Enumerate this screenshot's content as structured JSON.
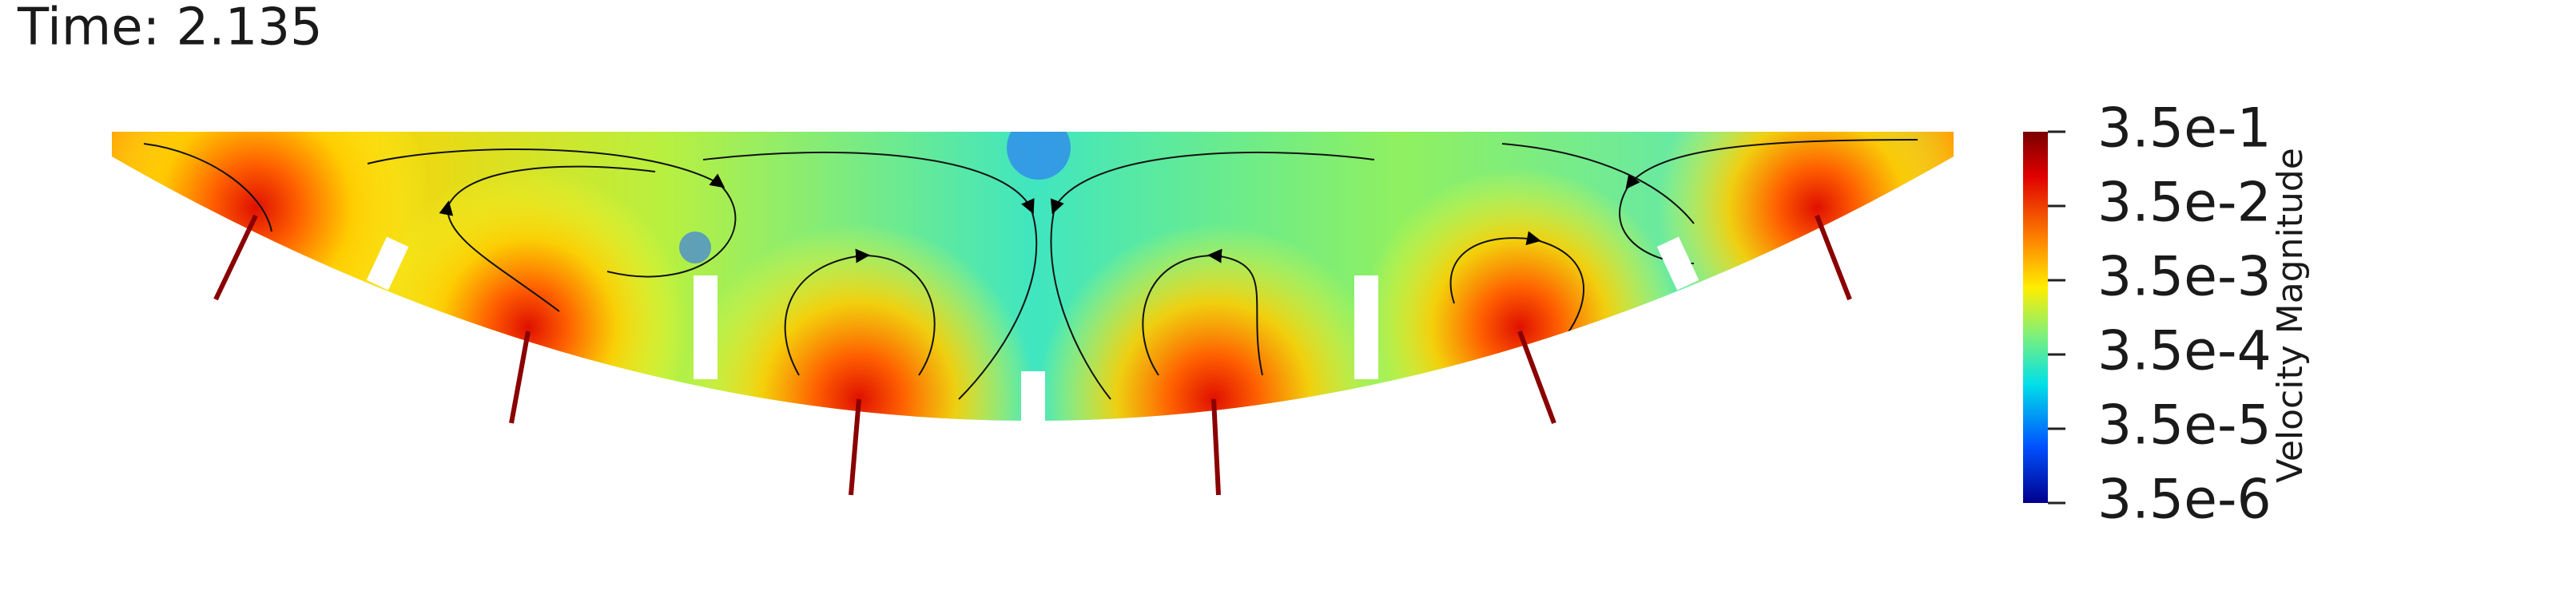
{
  "header": {
    "title": "Time: 2.135"
  },
  "colorbar": {
    "title": "Velocity Magnitude",
    "labels": [
      "3.5e-1",
      "3.5e-2",
      "3.5e-3",
      "3.5e-4",
      "3.5e-5",
      "3.5e-6"
    ]
  }
}
